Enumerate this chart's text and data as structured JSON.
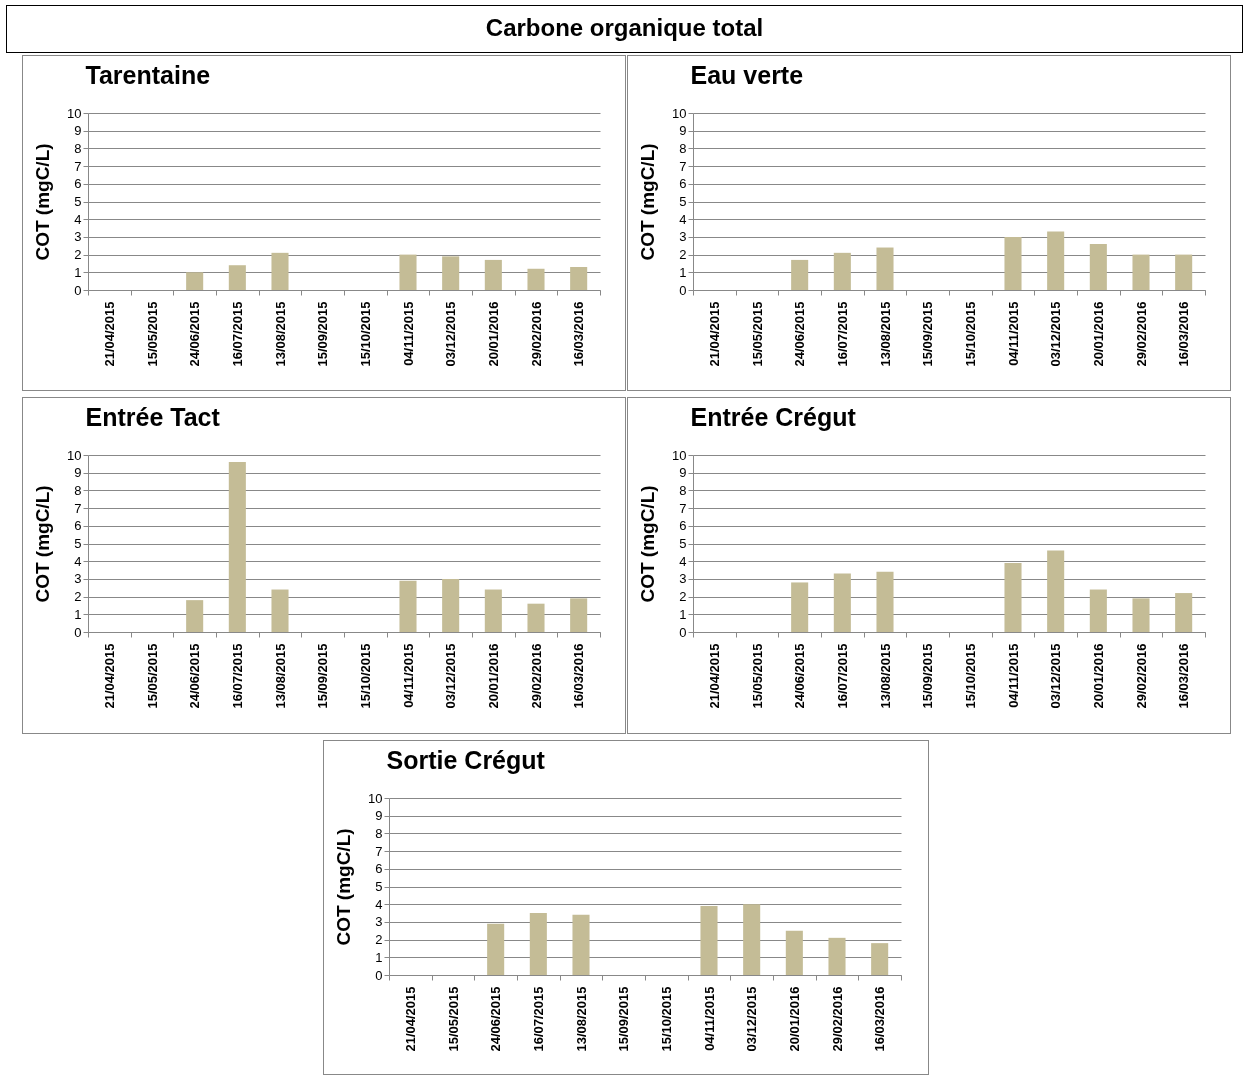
{
  "chart_data": [
    {
      "type": "other",
      "title": "Carbone organique total"
    },
    {
      "type": "bar",
      "title": "Tarentaine",
      "ylabel": "COT (mgC/L)",
      "categories": [
        "21/04/2015",
        "15/05/2015",
        "24/06/2015",
        "16/07/2015",
        "13/08/2015",
        "15/09/2015",
        "15/10/2015",
        "04/11/2015",
        "03/12/2015",
        "20/01/2016",
        "29/02/2016",
        "16/03/2016"
      ],
      "values": [
        null,
        null,
        1.0,
        1.4,
        2.1,
        null,
        null,
        2.0,
        1.9,
        1.7,
        1.2,
        1.3
      ],
      "color": "#c4bc96",
      "ylim": [
        0,
        10
      ],
      "yticks": [
        0,
        1,
        2,
        3,
        4,
        5,
        6,
        7,
        8,
        9,
        10
      ],
      "grid": "y"
    },
    {
      "type": "bar",
      "title": "Eau verte",
      "ylabel": "COT (mgC/L)",
      "categories": [
        "21/04/2015",
        "15/05/2015",
        "24/06/2015",
        "16/07/2015",
        "13/08/2015",
        "15/09/2015",
        "15/10/2015",
        "04/11/2015",
        "03/12/2015",
        "20/01/2016",
        "29/02/2016",
        "16/03/2016"
      ],
      "values": [
        null,
        null,
        1.7,
        2.1,
        2.4,
        null,
        null,
        3.0,
        3.3,
        2.6,
        2.0,
        2.0
      ],
      "color": "#c4bc96",
      "ylim": [
        0,
        10
      ],
      "yticks": [
        0,
        1,
        2,
        3,
        4,
        5,
        6,
        7,
        8,
        9,
        10
      ],
      "grid": "y"
    },
    {
      "type": "bar",
      "title": "Entrée Tact",
      "ylabel": "COT (mgC/L)",
      "categories": [
        "21/04/2015",
        "15/05/2015",
        "24/06/2015",
        "16/07/2015",
        "13/08/2015",
        "15/09/2015",
        "15/10/2015",
        "04/11/2015",
        "03/12/2015",
        "20/01/2016",
        "29/02/2016",
        "16/03/2016"
      ],
      "values": [
        null,
        null,
        1.8,
        9.6,
        2.4,
        null,
        null,
        2.9,
        3.0,
        2.4,
        1.6,
        1.9
      ],
      "color": "#c4bc96",
      "ylim": [
        0,
        10
      ],
      "yticks": [
        0,
        1,
        2,
        3,
        4,
        5,
        6,
        7,
        8,
        9,
        10
      ],
      "grid": "y"
    },
    {
      "type": "bar",
      "title": "Entrée Crégut",
      "ylabel": "COT (mgC/L)",
      "categories": [
        "21/04/2015",
        "15/05/2015",
        "24/06/2015",
        "16/07/2015",
        "13/08/2015",
        "15/09/2015",
        "15/10/2015",
        "04/11/2015",
        "03/12/2015",
        "20/01/2016",
        "29/02/2016",
        "16/03/2016"
      ],
      "values": [
        null,
        null,
        2.8,
        3.3,
        3.4,
        null,
        null,
        3.9,
        4.6,
        2.4,
        1.9,
        2.2
      ],
      "color": "#c4bc96",
      "ylim": [
        0,
        10
      ],
      "yticks": [
        0,
        1,
        2,
        3,
        4,
        5,
        6,
        7,
        8,
        9,
        10
      ],
      "grid": "y"
    },
    {
      "type": "bar",
      "title": "Sortie Crégut",
      "ylabel": "COT (mgC/L)",
      "categories": [
        "21/04/2015",
        "15/05/2015",
        "24/06/2015",
        "16/07/2015",
        "13/08/2015",
        "15/09/2015",
        "15/10/2015",
        "04/11/2015",
        "03/12/2015",
        "20/01/2016",
        "29/02/2016",
        "16/03/2016"
      ],
      "values": [
        null,
        null,
        2.9,
        3.5,
        3.4,
        null,
        null,
        3.9,
        4.0,
        2.5,
        2.1,
        1.8
      ],
      "color": "#c4bc96",
      "ylim": [
        0,
        10
      ],
      "yticks": [
        0,
        1,
        2,
        3,
        4,
        5,
        6,
        7,
        8,
        9,
        10
      ],
      "grid": "y"
    }
  ]
}
